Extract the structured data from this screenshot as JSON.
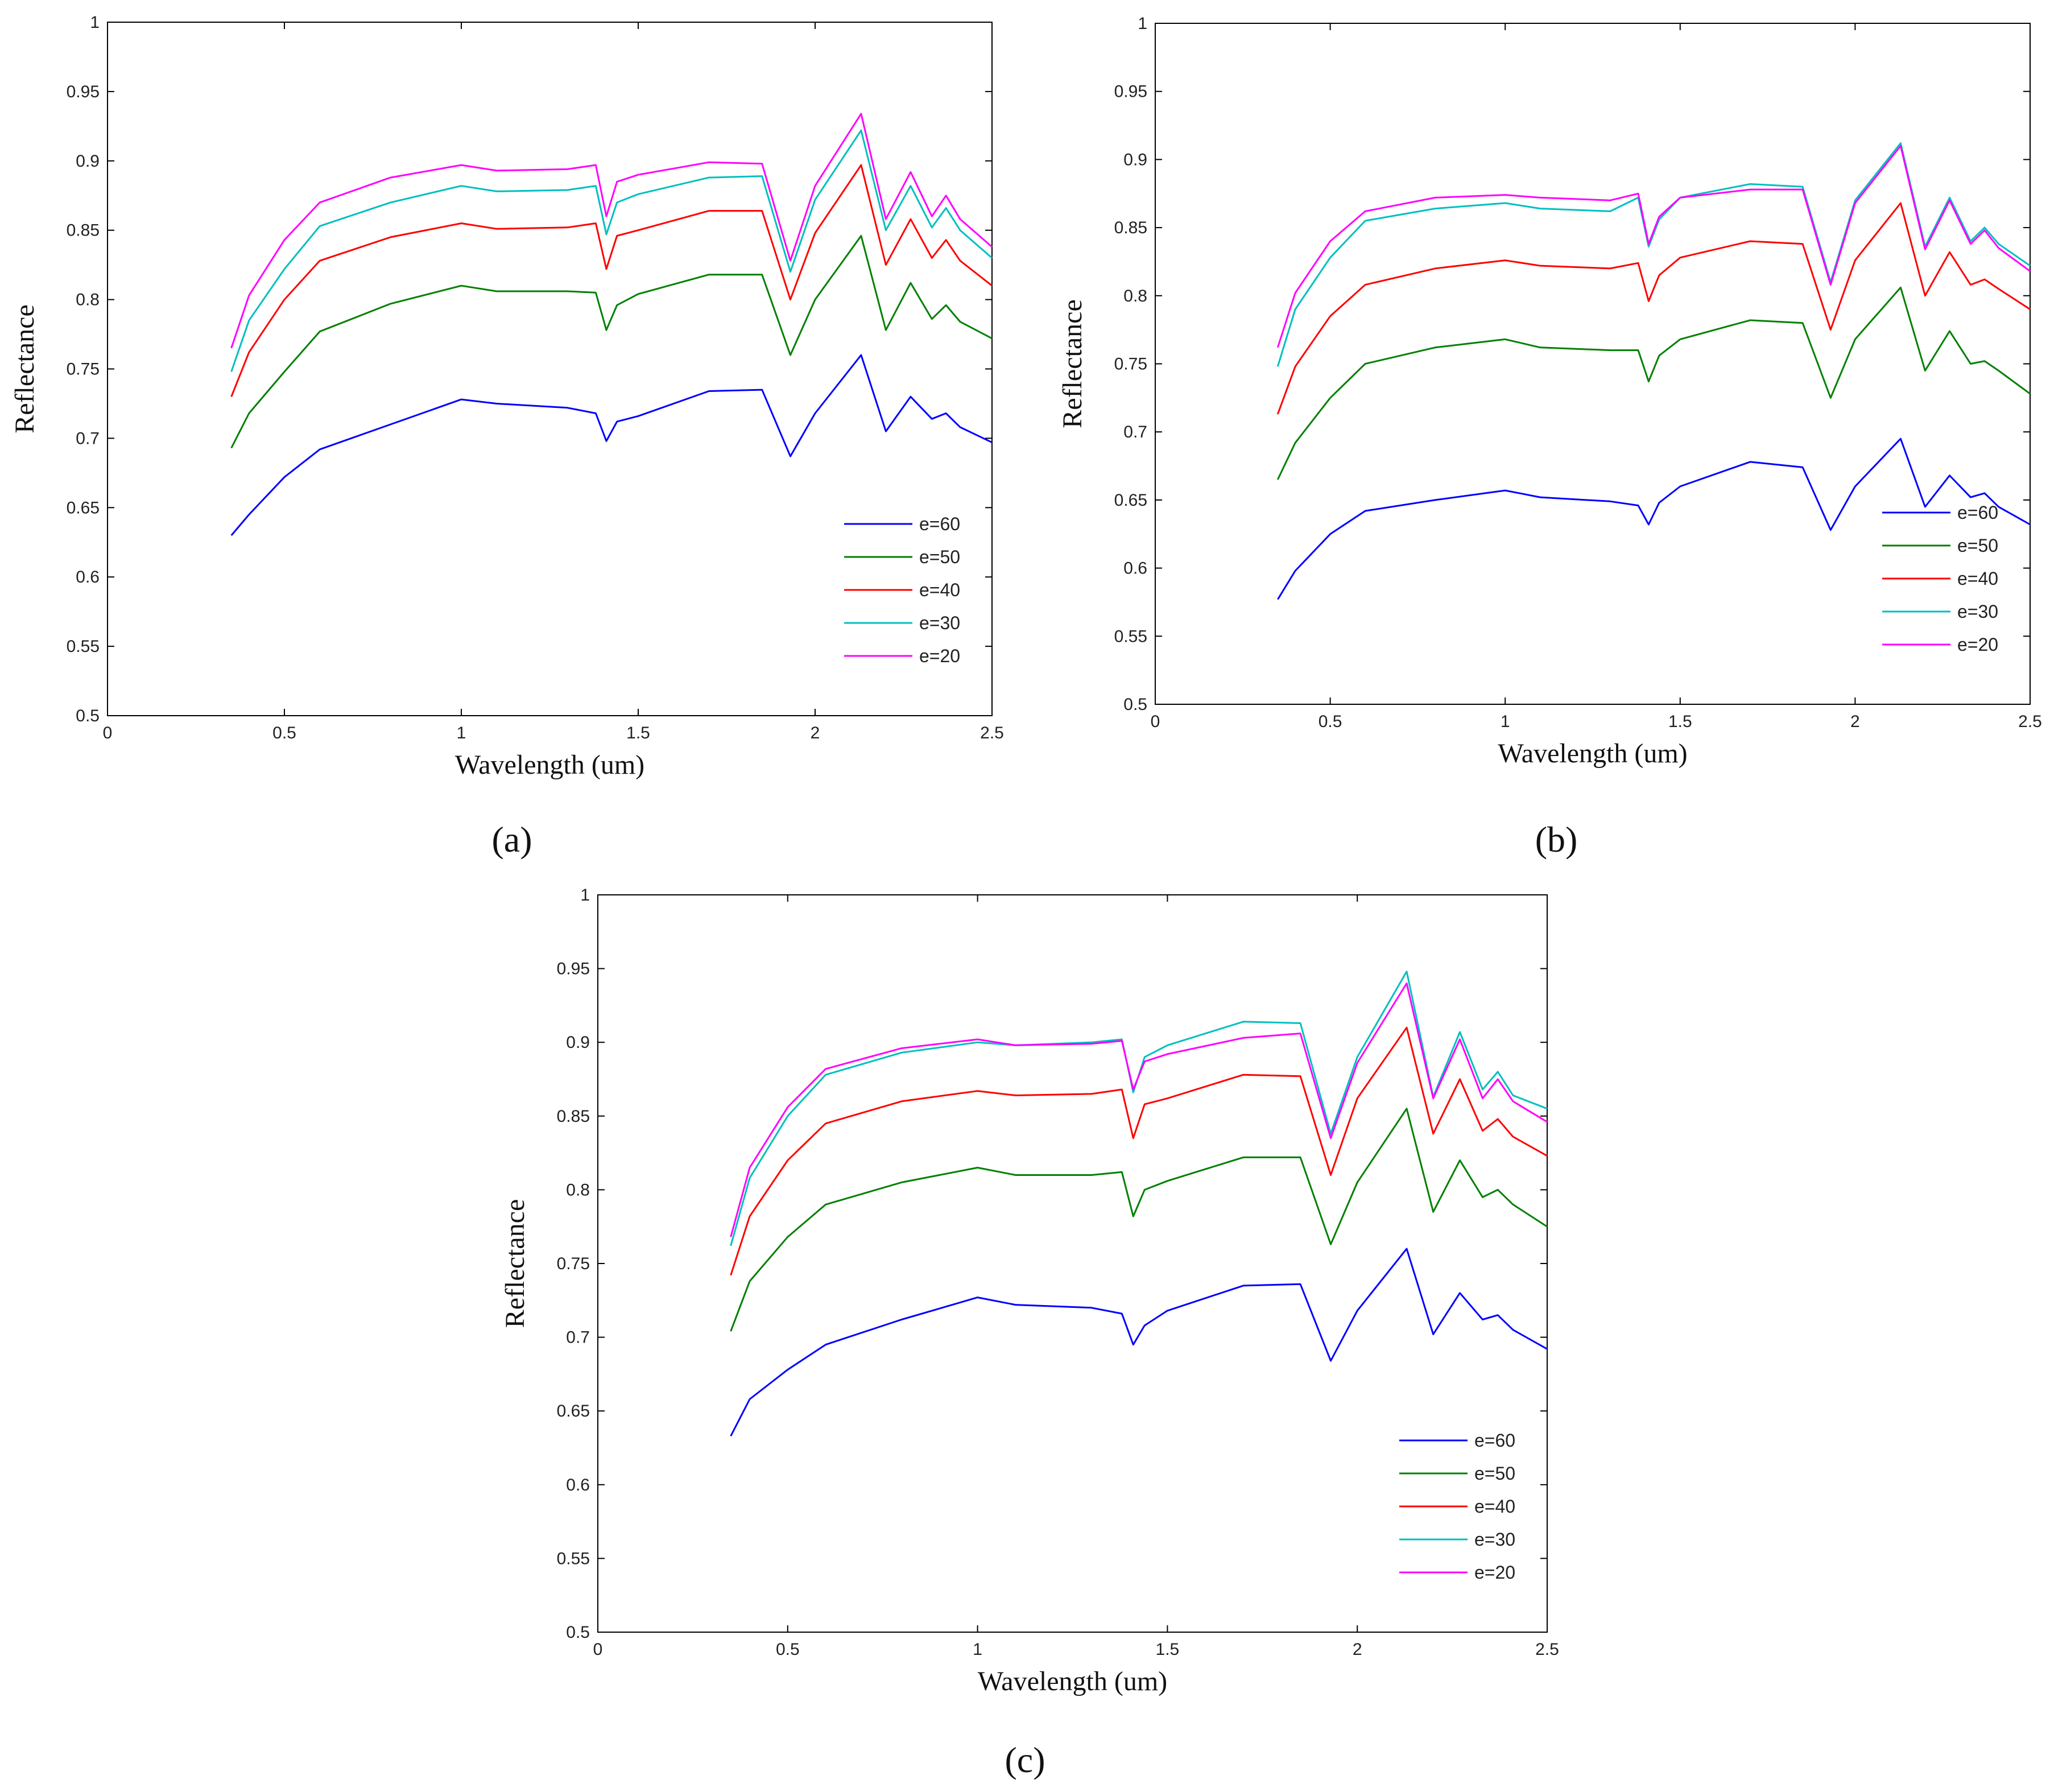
{
  "figure": {
    "panel_labels": [
      "(a)",
      "(b)",
      "(c)"
    ]
  },
  "chart_data": [
    {
      "id": "a",
      "type": "line",
      "label": "(a)",
      "xlabel": "Wavelength (um)",
      "ylabel": "Reflectance",
      "xlim": [
        0,
        2.5
      ],
      "ylim": [
        0.5,
        1
      ],
      "xticks": [
        0,
        0.5,
        1,
        1.5,
        2,
        2.5
      ],
      "xtick_labels": [
        "0",
        "0.5",
        "1",
        "1.5",
        "2",
        "2.5"
      ],
      "yticks": [
        0.5,
        0.55,
        0.6,
        0.65,
        0.7,
        0.75,
        0.8,
        0.85,
        0.9,
        0.95,
        1
      ],
      "ytick_labels": [
        "0.5",
        "0.55",
        "0.6",
        "0.65",
        "0.7",
        "0.75",
        "0.8",
        "0.85",
        "0.9",
        "0.95",
        "1"
      ],
      "legend_position": "lower-right",
      "x": [
        0.35,
        0.4,
        0.5,
        0.6,
        0.8,
        1.0,
        1.1,
        1.3,
        1.38,
        1.41,
        1.44,
        1.5,
        1.7,
        1.85,
        1.93,
        2.0,
        2.13,
        2.2,
        2.27,
        2.33,
        2.37,
        2.41,
        2.5
      ],
      "series": [
        {
          "name": "e=60",
          "color": "#0000ff",
          "values": [
            0.63,
            0.645,
            0.672,
            0.692,
            0.71,
            0.728,
            0.725,
            0.722,
            0.718,
            0.698,
            0.712,
            0.716,
            0.734,
            0.735,
            0.687,
            0.718,
            0.76,
            0.705,
            0.73,
            0.714,
            0.718,
            0.708,
            0.697
          ]
        },
        {
          "name": "e=50",
          "color": "#008000",
          "values": [
            0.693,
            0.718,
            0.748,
            0.777,
            0.797,
            0.81,
            0.806,
            0.806,
            0.805,
            0.778,
            0.796,
            0.804,
            0.818,
            0.818,
            0.76,
            0.8,
            0.846,
            0.778,
            0.812,
            0.786,
            0.796,
            0.784,
            0.772
          ]
        },
        {
          "name": "e=40",
          "color": "#ff0000",
          "values": [
            0.73,
            0.762,
            0.8,
            0.828,
            0.845,
            0.855,
            0.851,
            0.852,
            0.855,
            0.822,
            0.846,
            0.85,
            0.864,
            0.864,
            0.8,
            0.848,
            0.897,
            0.825,
            0.858,
            0.83,
            0.843,
            0.828,
            0.81
          ]
        },
        {
          "name": "e=30",
          "color": "#00bfbf",
          "values": [
            0.748,
            0.785,
            0.822,
            0.853,
            0.87,
            0.882,
            0.878,
            0.879,
            0.882,
            0.847,
            0.87,
            0.876,
            0.888,
            0.889,
            0.82,
            0.872,
            0.922,
            0.85,
            0.882,
            0.852,
            0.866,
            0.85,
            0.83
          ]
        },
        {
          "name": "e=20",
          "color": "#ff00ff",
          "values": [
            0.765,
            0.803,
            0.843,
            0.87,
            0.888,
            0.897,
            0.893,
            0.894,
            0.897,
            0.86,
            0.885,
            0.89,
            0.899,
            0.898,
            0.828,
            0.882,
            0.934,
            0.858,
            0.892,
            0.86,
            0.875,
            0.858,
            0.838
          ]
        }
      ]
    },
    {
      "id": "b",
      "type": "line",
      "label": "(b)",
      "xlabel": "Wavelength (um)",
      "ylabel": "Reflectance",
      "xlim": [
        0,
        2.5
      ],
      "ylim": [
        0.5,
        1
      ],
      "xticks": [
        0,
        0.5,
        1,
        1.5,
        2,
        2.5
      ],
      "xtick_labels": [
        "0",
        "0.5",
        "1",
        "1.5",
        "2",
        "2.5"
      ],
      "yticks": [
        0.5,
        0.55,
        0.6,
        0.65,
        0.7,
        0.75,
        0.8,
        0.85,
        0.9,
        0.95,
        1
      ],
      "ytick_labels": [
        "0.5",
        "0.55",
        "0.6",
        "0.65",
        "0.7",
        "0.75",
        "0.8",
        "0.85",
        "0.9",
        "0.95",
        "1"
      ],
      "legend_position": "lower-right",
      "x": [
        0.35,
        0.4,
        0.5,
        0.6,
        0.8,
        1.0,
        1.1,
        1.3,
        1.38,
        1.41,
        1.44,
        1.5,
        1.7,
        1.85,
        1.93,
        2.0,
        2.13,
        2.2,
        2.27,
        2.33,
        2.37,
        2.41,
        2.5
      ],
      "series": [
        {
          "name": "e=60",
          "color": "#0000ff",
          "values": [
            0.577,
            0.598,
            0.625,
            0.642,
            0.65,
            0.657,
            0.652,
            0.649,
            0.646,
            0.632,
            0.648,
            0.66,
            0.678,
            0.674,
            0.628,
            0.66,
            0.695,
            0.645,
            0.668,
            0.652,
            0.655,
            0.645,
            0.632
          ]
        },
        {
          "name": "e=50",
          "color": "#008000",
          "values": [
            0.665,
            0.692,
            0.725,
            0.75,
            0.762,
            0.768,
            0.762,
            0.76,
            0.76,
            0.737,
            0.756,
            0.768,
            0.782,
            0.78,
            0.725,
            0.768,
            0.806,
            0.745,
            0.774,
            0.75,
            0.752,
            0.745,
            0.728
          ]
        },
        {
          "name": "e=40",
          "color": "#ff0000",
          "values": [
            0.713,
            0.748,
            0.785,
            0.808,
            0.82,
            0.826,
            0.822,
            0.82,
            0.824,
            0.796,
            0.815,
            0.828,
            0.84,
            0.838,
            0.775,
            0.826,
            0.868,
            0.8,
            0.832,
            0.808,
            0.812,
            0.805,
            0.79
          ]
        },
        {
          "name": "e=30",
          "color": "#00bfbf",
          "values": [
            0.748,
            0.79,
            0.828,
            0.855,
            0.864,
            0.868,
            0.864,
            0.862,
            0.872,
            0.836,
            0.856,
            0.872,
            0.882,
            0.88,
            0.81,
            0.87,
            0.912,
            0.836,
            0.872,
            0.84,
            0.85,
            0.838,
            0.822
          ]
        },
        {
          "name": "e=20",
          "color": "#ff00ff",
          "values": [
            0.762,
            0.802,
            0.84,
            0.862,
            0.872,
            0.874,
            0.872,
            0.87,
            0.875,
            0.838,
            0.858,
            0.872,
            0.878,
            0.878,
            0.808,
            0.868,
            0.91,
            0.834,
            0.87,
            0.838,
            0.848,
            0.835,
            0.818
          ]
        }
      ]
    },
    {
      "id": "c",
      "type": "line",
      "label": "(c)",
      "xlabel": "Wavelength (um)",
      "ylabel": "Reflectance",
      "xlim": [
        0,
        2.5
      ],
      "ylim": [
        0.5,
        1
      ],
      "xticks": [
        0,
        0.5,
        1,
        1.5,
        2,
        2.5
      ],
      "xtick_labels": [
        "0",
        "0.5",
        "1",
        "1.5",
        "2",
        "2.5"
      ],
      "yticks": [
        0.5,
        0.55,
        0.6,
        0.65,
        0.7,
        0.75,
        0.8,
        0.85,
        0.9,
        0.95,
        1
      ],
      "ytick_labels": [
        "0.5",
        "0.55",
        "0.6",
        "0.65",
        "0.7",
        "0.75",
        "0.8",
        "0.85",
        "0.9",
        "0.95",
        "1"
      ],
      "legend_position": "lower-right",
      "x": [
        0.35,
        0.4,
        0.5,
        0.6,
        0.8,
        1.0,
        1.1,
        1.3,
        1.38,
        1.41,
        1.44,
        1.5,
        1.7,
        1.85,
        1.93,
        2.0,
        2.13,
        2.2,
        2.27,
        2.33,
        2.37,
        2.41,
        2.5
      ],
      "series": [
        {
          "name": "e=60",
          "color": "#0000ff",
          "values": [
            0.633,
            0.658,
            0.678,
            0.695,
            0.712,
            0.727,
            0.722,
            0.72,
            0.716,
            0.695,
            0.708,
            0.718,
            0.735,
            0.736,
            0.684,
            0.718,
            0.76,
            0.702,
            0.73,
            0.712,
            0.715,
            0.705,
            0.692
          ]
        },
        {
          "name": "e=50",
          "color": "#008000",
          "values": [
            0.704,
            0.738,
            0.768,
            0.79,
            0.805,
            0.815,
            0.81,
            0.81,
            0.812,
            0.782,
            0.8,
            0.806,
            0.822,
            0.822,
            0.763,
            0.805,
            0.855,
            0.785,
            0.82,
            0.795,
            0.8,
            0.79,
            0.775
          ]
        },
        {
          "name": "e=40",
          "color": "#ff0000",
          "values": [
            0.742,
            0.782,
            0.82,
            0.845,
            0.86,
            0.867,
            0.864,
            0.865,
            0.868,
            0.835,
            0.858,
            0.862,
            0.878,
            0.877,
            0.81,
            0.862,
            0.91,
            0.838,
            0.875,
            0.84,
            0.848,
            0.836,
            0.823
          ]
        },
        {
          "name": "e=30",
          "color": "#00bfbf",
          "values": [
            0.762,
            0.808,
            0.85,
            0.878,
            0.893,
            0.9,
            0.898,
            0.9,
            0.902,
            0.866,
            0.89,
            0.898,
            0.914,
            0.913,
            0.838,
            0.89,
            0.948,
            0.863,
            0.907,
            0.868,
            0.88,
            0.864,
            0.855
          ]
        },
        {
          "name": "e=20",
          "color": "#ff00ff",
          "values": [
            0.768,
            0.815,
            0.856,
            0.882,
            0.896,
            0.902,
            0.898,
            0.899,
            0.901,
            0.868,
            0.887,
            0.892,
            0.903,
            0.906,
            0.835,
            0.886,
            0.94,
            0.862,
            0.902,
            0.862,
            0.875,
            0.86,
            0.846
          ]
        }
      ]
    }
  ]
}
